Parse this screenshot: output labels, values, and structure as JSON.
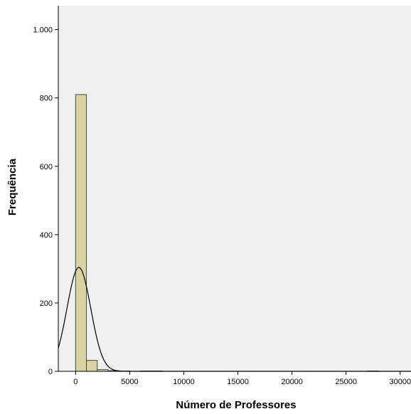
{
  "chart_data": {
    "type": "bar",
    "title": "",
    "xlabel": "Número de Professores",
    "ylabel": "Frequência",
    "xlim": [
      -1600,
      31000
    ],
    "ylim": [
      0,
      1070
    ],
    "x_ticks": [
      0,
      5000,
      10000,
      15000,
      20000,
      25000,
      30000
    ],
    "x_tick_labels": [
      "0",
      "5000",
      "10000",
      "15000",
      "20000",
      "25000",
      "30000"
    ],
    "y_ticks": [
      0,
      200,
      400,
      600,
      800,
      1000
    ],
    "y_tick_labels": [
      "0",
      "200",
      "400",
      "600",
      "800",
      "1.000"
    ],
    "bins": [
      {
        "x0": 0,
        "x1": 1000,
        "count": 810
      },
      {
        "x0": 1000,
        "x1": 2000,
        "count": 32
      },
      {
        "x0": 2000,
        "x1": 3000,
        "count": 5
      },
      {
        "x0": 3000,
        "x1": 4000,
        "count": 2
      },
      {
        "x0": 4000,
        "x1": 5000,
        "count": 1
      },
      {
        "x0": 6000,
        "x1": 7000,
        "count": 1
      },
      {
        "x0": 7000,
        "x1": 8000,
        "count": 1
      },
      {
        "x0": 27000,
        "x1": 28000,
        "count": 1
      }
    ],
    "normal_curve": {
      "mean": 300,
      "sd": 1100,
      "peak": 304
    },
    "grid": false,
    "legend": "none",
    "colors": {
      "bar_fill": "#d9d2a1",
      "bar_stroke": "#4a4a4a",
      "plot_bg": "#f0f0f0",
      "curve": "#000000"
    }
  }
}
